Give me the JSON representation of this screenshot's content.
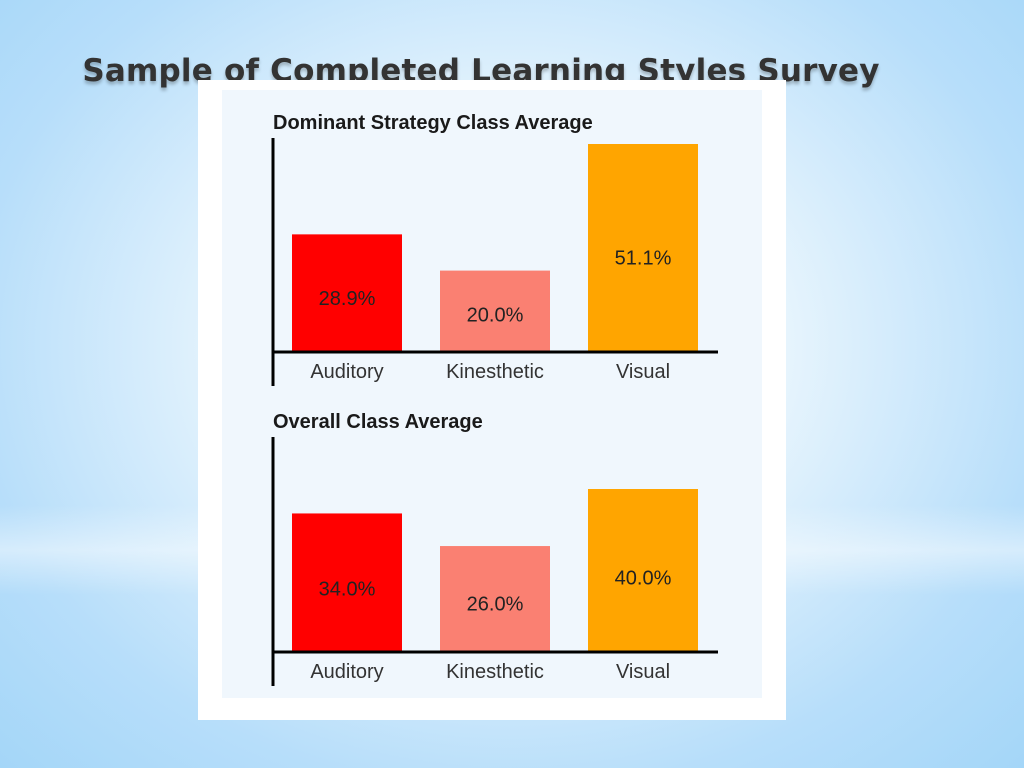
{
  "slide": {
    "title": "Sample of Completed Learning Styles Survey"
  },
  "colors": {
    "auditory": "#ff0000",
    "kinesthetic": "#fa8072",
    "visual": "#ffa500",
    "axis": "#000000"
  },
  "chart_data": [
    {
      "type": "bar",
      "title": "Dominant Strategy Class Average",
      "categories": [
        "Auditory",
        "Kinesthetic",
        "Visual"
      ],
      "values": [
        28.9,
        20.0,
        51.1
      ],
      "data_labels": [
        "28.9%",
        "20.0%",
        "51.1%"
      ],
      "ylim": [
        0,
        52
      ],
      "grid": false,
      "legend": "none"
    },
    {
      "type": "bar",
      "title": "Overall Class Average",
      "categories": [
        "Auditory",
        "Kinesthetic",
        "Visual"
      ],
      "values": [
        34.0,
        26.0,
        40.0
      ],
      "data_labels": [
        "34.0%",
        "26.0%",
        "40.0%"
      ],
      "ylim": [
        0,
        41
      ],
      "grid": false,
      "legend": "none"
    }
  ]
}
